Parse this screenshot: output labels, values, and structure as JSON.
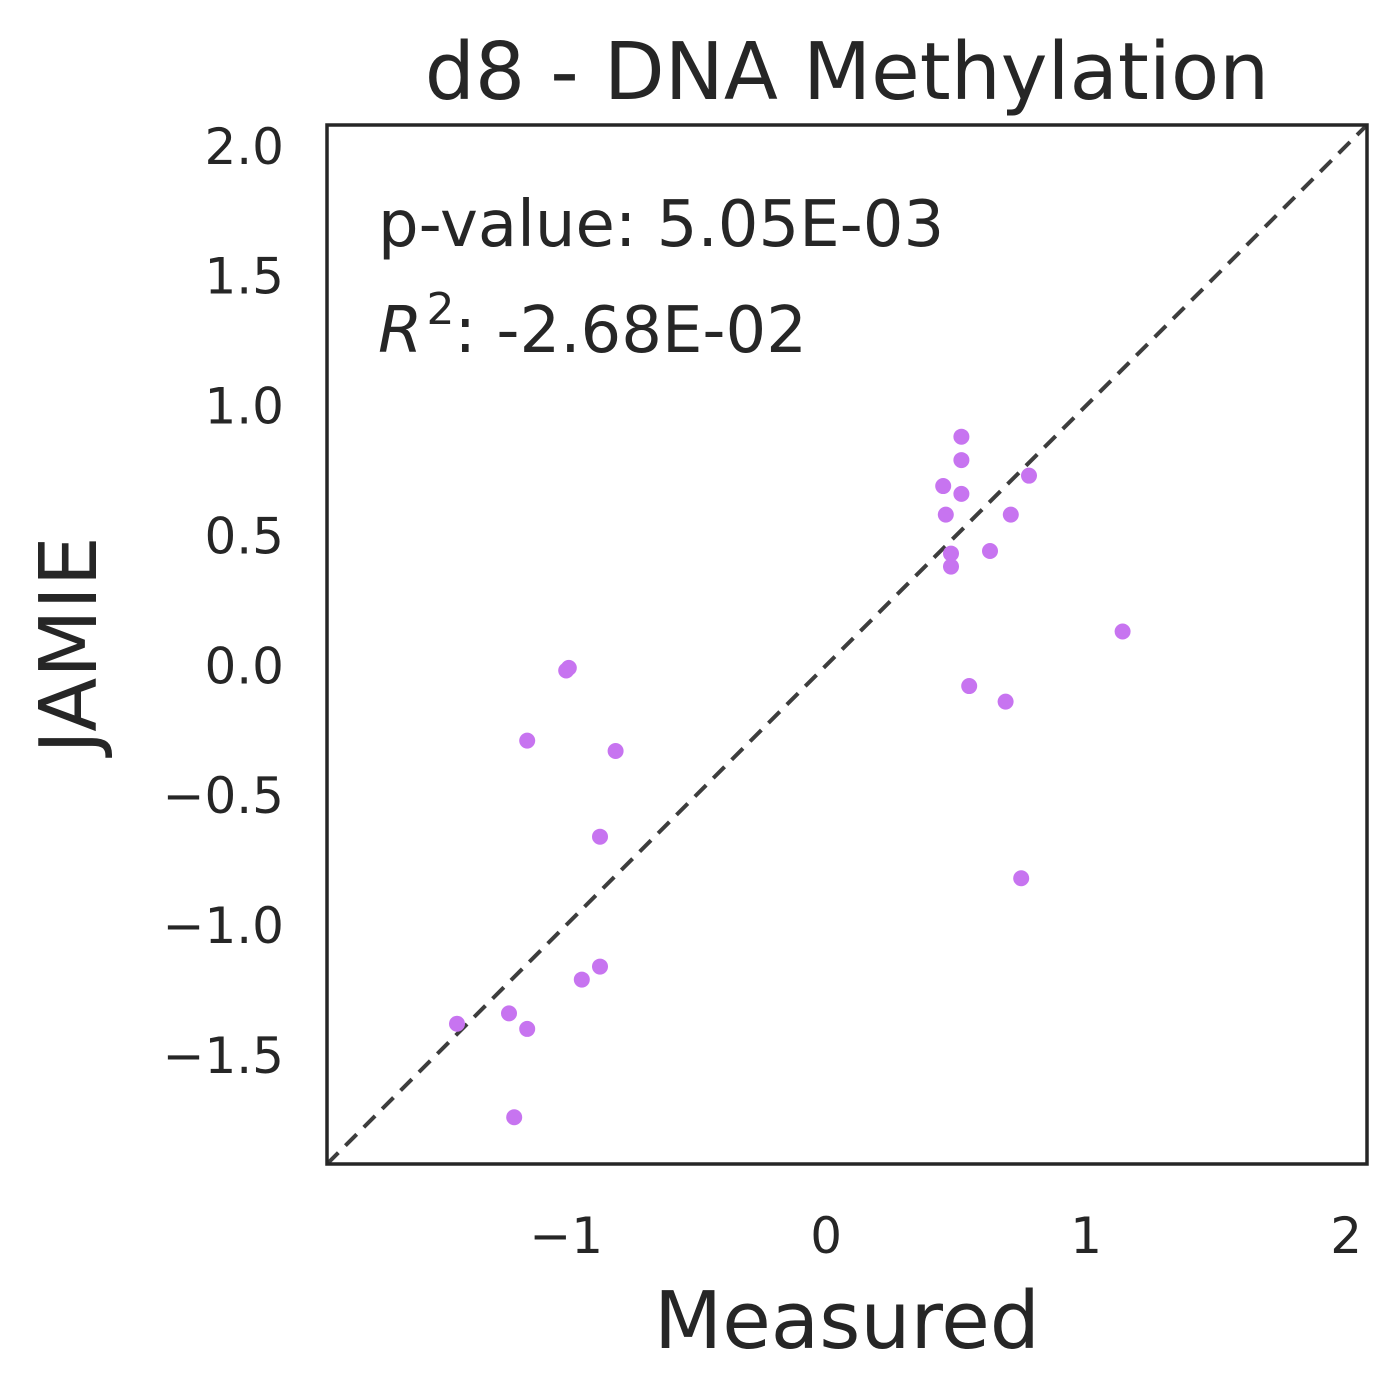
{
  "chart_data": {
    "type": "scatter",
    "title": "d8 - DNA Methylation",
    "xlabel": "Measured",
    "ylabel": "JAMIE",
    "xlim": [
      -1.92,
      2.08
    ],
    "ylim": [
      -1.92,
      2.08
    ],
    "xticks": [
      {
        "value": -1,
        "label": "−1"
      },
      {
        "value": 0,
        "label": "0"
      },
      {
        "value": 1,
        "label": "1"
      },
      {
        "value": 2,
        "label": "2"
      }
    ],
    "yticks": [
      {
        "value": 2.0,
        "label": "2.0"
      },
      {
        "value": 1.5,
        "label": "1.5"
      },
      {
        "value": 1.0,
        "label": "1.0"
      },
      {
        "value": 0.5,
        "label": "0.5"
      },
      {
        "value": 0.0,
        "label": "0.0"
      },
      {
        "value": -0.5,
        "label": "−0.5"
      },
      {
        "value": -1.0,
        "label": "−1.0"
      },
      {
        "value": -1.5,
        "label": "−1.5"
      }
    ],
    "grid": false,
    "marker_color": "#c774f0",
    "reference_line": {
      "style": "dashed",
      "color": "#3d3d3d",
      "from": [
        -1.92,
        -1.92
      ],
      "to": [
        2.08,
        2.08
      ]
    },
    "annotations": {
      "pvalue": "p-value: 5.05E-03",
      "r2_symbol": "R",
      "r2_exponent": "2",
      "r2_value": ": -2.68E-02"
    },
    "points": [
      {
        "x": 0.52,
        "y": 0.88
      },
      {
        "x": 0.52,
        "y": 0.79
      },
      {
        "x": 0.45,
        "y": 0.69
      },
      {
        "x": 0.52,
        "y": 0.66
      },
      {
        "x": 0.78,
        "y": 0.73
      },
      {
        "x": 0.46,
        "y": 0.58
      },
      {
        "x": 0.71,
        "y": 0.58
      },
      {
        "x": 0.48,
        "y": 0.43
      },
      {
        "x": 0.48,
        "y": 0.38
      },
      {
        "x": 0.63,
        "y": 0.44
      },
      {
        "x": 1.14,
        "y": 0.13
      },
      {
        "x": 0.55,
        "y": -0.08
      },
      {
        "x": 0.69,
        "y": -0.14
      },
      {
        "x": 0.75,
        "y": -0.82
      },
      {
        "x": -0.99,
        "y": -0.01
      },
      {
        "x": -1.0,
        "y": -0.02
      },
      {
        "x": -1.15,
        "y": -0.29
      },
      {
        "x": -0.81,
        "y": -0.33
      },
      {
        "x": -0.87,
        "y": -0.66
      },
      {
        "x": -0.87,
        "y": -1.16
      },
      {
        "x": -0.94,
        "y": -1.21
      },
      {
        "x": -1.42,
        "y": -1.38
      },
      {
        "x": -1.22,
        "y": -1.34
      },
      {
        "x": -1.15,
        "y": -1.4
      },
      {
        "x": -1.2,
        "y": -1.74
      }
    ]
  }
}
